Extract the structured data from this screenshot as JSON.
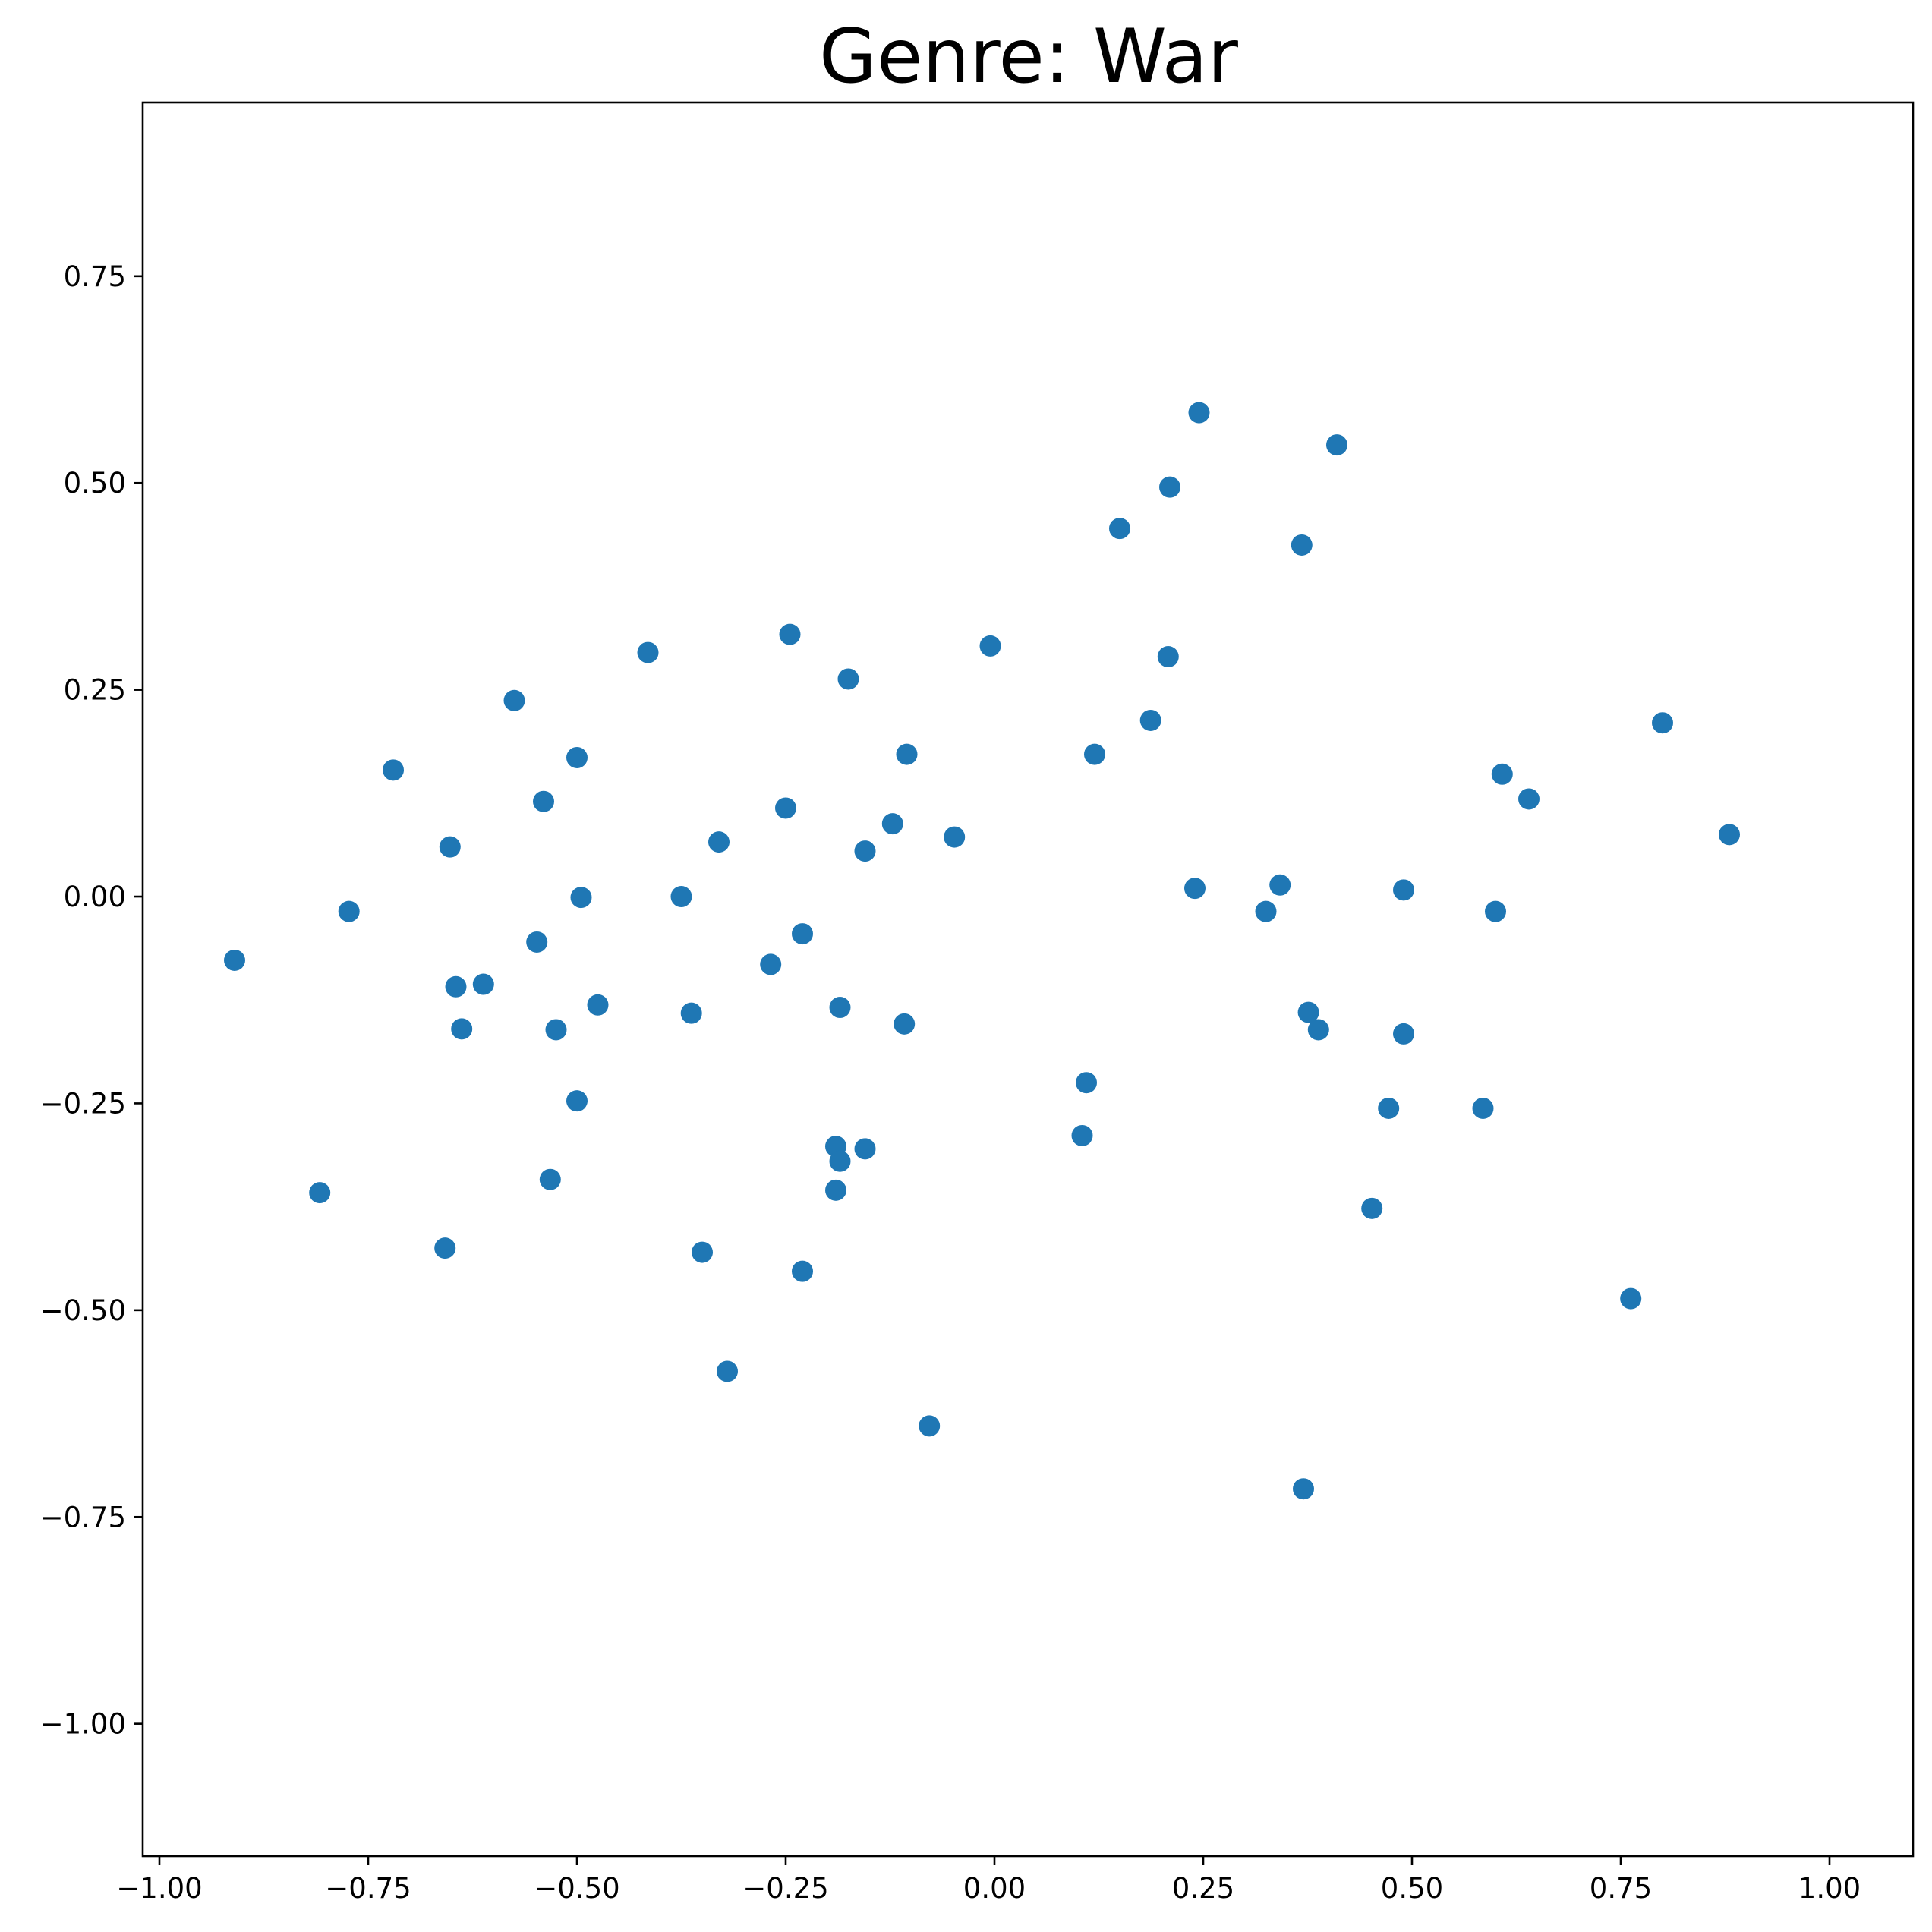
{
  "chart_data": {
    "type": "scatter",
    "title": "Genre: War",
    "xlabel": "",
    "ylabel": "",
    "xlim": [
      -1.02,
      1.1
    ],
    "ylim": [
      -1.16,
      0.96
    ],
    "grid": false,
    "legend": "none",
    "marker_color": "#1f77b4",
    "x_ticks": [
      {
        "value": -1.0,
        "label": "−1.00"
      },
      {
        "value": -0.75,
        "label": "−0.75"
      },
      {
        "value": -0.5,
        "label": "−0.50"
      },
      {
        "value": -0.25,
        "label": "−0.25"
      },
      {
        "value": 0.0,
        "label": "0.00"
      },
      {
        "value": 0.25,
        "label": "0.25"
      },
      {
        "value": 0.5,
        "label": "0.50"
      },
      {
        "value": 0.75,
        "label": "0.75"
      },
      {
        "value": 1.0,
        "label": "1.00"
      }
    ],
    "y_ticks": [
      {
        "value": -1.0,
        "label": "−1.00"
      },
      {
        "value": -0.75,
        "label": "−0.75"
      },
      {
        "value": -0.5,
        "label": "−0.50"
      },
      {
        "value": -0.25,
        "label": "−0.25"
      },
      {
        "value": 0.0,
        "label": "0.00"
      },
      {
        "value": 0.25,
        "label": "0.25"
      },
      {
        "value": 0.5,
        "label": "0.50"
      },
      {
        "value": 0.75,
        "label": "0.75"
      }
    ],
    "points": [
      {
        "x": 0.245,
        "y": 0.585
      },
      {
        "x": 0.41,
        "y": 0.546
      },
      {
        "x": 0.21,
        "y": 0.495
      },
      {
        "x": 0.15,
        "y": 0.445
      },
      {
        "x": 0.368,
        "y": 0.425
      },
      {
        "x": -0.245,
        "y": 0.317
      },
      {
        "x": -0.005,
        "y": 0.303
      },
      {
        "x": -0.415,
        "y": 0.295
      },
      {
        "x": 0.208,
        "y": 0.29
      },
      {
        "x": -0.175,
        "y": 0.263
      },
      {
        "x": -0.575,
        "y": 0.237
      },
      {
        "x": 0.187,
        "y": 0.213
      },
      {
        "x": 0.8,
        "y": 0.21
      },
      {
        "x": 0.12,
        "y": 0.172
      },
      {
        "x": -0.105,
        "y": 0.172
      },
      {
        "x": -0.5,
        "y": 0.168
      },
      {
        "x": -0.72,
        "y": 0.153
      },
      {
        "x": 0.608,
        "y": 0.148
      },
      {
        "x": 0.64,
        "y": 0.118
      },
      {
        "x": -0.54,
        "y": 0.115
      },
      {
        "x": -0.25,
        "y": 0.107
      },
      {
        "x": -0.122,
        "y": 0.088
      },
      {
        "x": 0.88,
        "y": 0.075
      },
      {
        "x": -0.048,
        "y": 0.072
      },
      {
        "x": -0.33,
        "y": 0.066
      },
      {
        "x": -0.652,
        "y": 0.06
      },
      {
        "x": -0.155,
        "y": 0.055
      },
      {
        "x": 0.342,
        "y": 0.014
      },
      {
        "x": 0.24,
        "y": 0.01
      },
      {
        "x": 0.49,
        "y": 0.008
      },
      {
        "x": -0.375,
        "y": 0.0
      },
      {
        "x": -0.495,
        "y": -0.001
      },
      {
        "x": -0.773,
        "y": -0.018
      },
      {
        "x": 0.325,
        "y": -0.018
      },
      {
        "x": 0.6,
        "y": -0.018
      },
      {
        "x": -0.23,
        "y": -0.045
      },
      {
        "x": -0.548,
        "y": -0.055
      },
      {
        "x": -0.268,
        "y": -0.082
      },
      {
        "x": -0.91,
        "y": -0.077
      },
      {
        "x": -0.612,
        "y": -0.106
      },
      {
        "x": -0.645,
        "y": -0.109
      },
      {
        "x": -0.475,
        "y": -0.131
      },
      {
        "x": -0.185,
        "y": -0.134
      },
      {
        "x": -0.363,
        "y": -0.141
      },
      {
        "x": 0.376,
        "y": -0.14
      },
      {
        "x": -0.108,
        "y": -0.154
      },
      {
        "x": -0.638,
        "y": -0.16
      },
      {
        "x": -0.525,
        "y": -0.161
      },
      {
        "x": 0.388,
        "y": -0.161
      },
      {
        "x": 0.49,
        "y": -0.166
      },
      {
        "x": 0.11,
        "y": -0.225
      },
      {
        "x": -0.5,
        "y": -0.247
      },
      {
        "x": 0.472,
        "y": -0.256
      },
      {
        "x": 0.585,
        "y": -0.256
      },
      {
        "x": 0.105,
        "y": -0.289
      },
      {
        "x": -0.19,
        "y": -0.302
      },
      {
        "x": -0.155,
        "y": -0.305
      },
      {
        "x": -0.185,
        "y": -0.32
      },
      {
        "x": -0.532,
        "y": -0.342
      },
      {
        "x": -0.19,
        "y": -0.355
      },
      {
        "x": -0.808,
        "y": -0.358
      },
      {
        "x": 0.452,
        "y": -0.377
      },
      {
        "x": -0.658,
        "y": -0.425
      },
      {
        "x": -0.35,
        "y": -0.43
      },
      {
        "x": -0.23,
        "y": -0.453
      },
      {
        "x": 0.762,
        "y": -0.486
      },
      {
        "x": -0.32,
        "y": -0.574
      },
      {
        "x": -0.078,
        "y": -0.64
      },
      {
        "x": 0.37,
        "y": -0.716
      }
    ]
  }
}
